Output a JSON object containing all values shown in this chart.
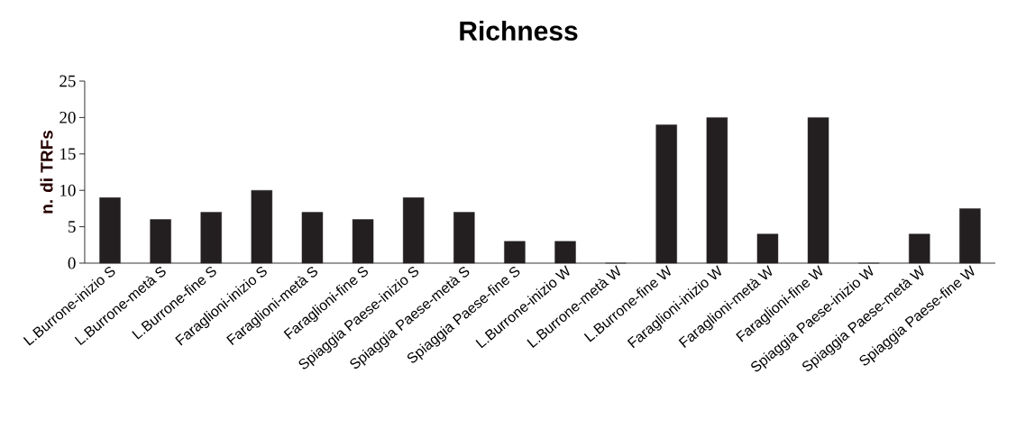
{
  "chart_data": {
    "type": "bar",
    "title": "Richness",
    "ylabel": "n. di TRFs",
    "categories": [
      "L.Burrone-inizio S",
      "L.Burrone-metà S",
      "L.Burrone-fine S",
      "Faraglioni-inizio S",
      "Faraglioni-metà S",
      "Faraglioni-fine S",
      "Spiaggia Paese-inizio S",
      "Spiaggia Paese-metà S",
      "Spiaggia Paese-fine S",
      "L.Burrone-inizio W",
      "L.Burrone-metà W",
      "L.Burrone-fine W",
      "Faraglioni-inizio W",
      "Faraglioni-metà W",
      "Faraglioni-fine W",
      "Spiaggia Paese-inizio W",
      "Spiaggia Paese-metà W",
      "Spiaggia Paese-fine W"
    ],
    "values": [
      9,
      6,
      7,
      10,
      7,
      6,
      9,
      7,
      3,
      3,
      0,
      19,
      20,
      4,
      20,
      0,
      4,
      7.5
    ],
    "color": "#231f20",
    "ylim": [
      0,
      25
    ],
    "yticks": [
      0,
      5,
      10,
      15,
      20,
      25
    ],
    "grid": false
  }
}
